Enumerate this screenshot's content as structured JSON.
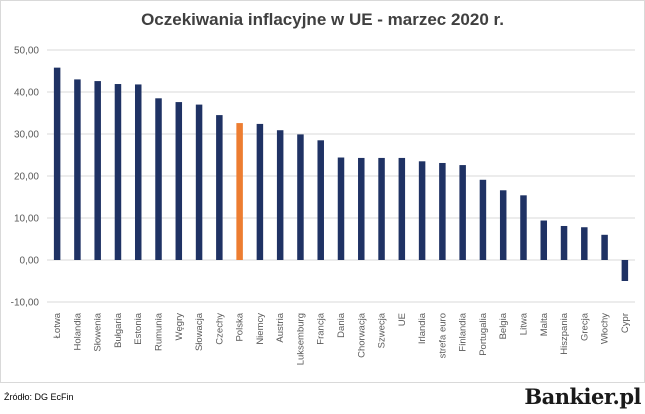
{
  "chart_data": {
    "type": "bar",
    "title": "Oczekiwania inflacyjne w UE - marzec 2020 r.",
    "xlabel": "",
    "ylabel": "",
    "ylim": [
      -10,
      50
    ],
    "yticks": [
      "-10,00",
      "0,00",
      "10,00",
      "20,00",
      "30,00",
      "40,00",
      "50,00"
    ],
    "grid": true,
    "legend": "none",
    "categories": [
      "Łotwa",
      "Holandia",
      "Słowenia",
      "Bułgaria",
      "Estonia",
      "Rumunia",
      "Węgry",
      "Słowacja",
      "Czechy",
      "Polska",
      "Niemcy",
      "Austria",
      "Luksemburg",
      "Francja",
      "Dania",
      "Chorwacja",
      "Szwecja",
      "UE",
      "Irlandia",
      "strefa euro",
      "Finlandia",
      "Portugalia",
      "Belgia",
      "Litwa",
      "Malta",
      "Hiszpania",
      "Grecja",
      "Włochy",
      "Cypr"
    ],
    "values": [
      45.8,
      43.0,
      42.6,
      41.9,
      41.8,
      38.5,
      37.6,
      37.0,
      34.5,
      32.6,
      32.4,
      30.9,
      29.9,
      28.5,
      24.4,
      24.3,
      24.3,
      24.3,
      23.5,
      23.1,
      22.6,
      19.1,
      16.6,
      15.4,
      9.4,
      8.1,
      7.8,
      6.0,
      -5.0
    ],
    "colors": {
      "default": "#1f3264",
      "highlight": "#ed7d31",
      "highlight_category": "Polska",
      "grid": "#d9d9d9",
      "axis_text": "#595959"
    }
  },
  "footer": {
    "source": "Źródło: DG EcFin",
    "logo": "Bankier.pl"
  }
}
